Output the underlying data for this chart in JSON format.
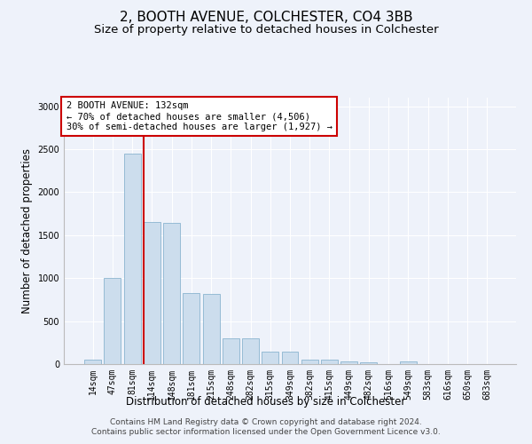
{
  "title": "2, BOOTH AVENUE, COLCHESTER, CO4 3BB",
  "subtitle": "Size of property relative to detached houses in Colchester",
  "xlabel": "Distribution of detached houses by size in Colchester",
  "ylabel": "Number of detached properties",
  "categories": [
    "14sqm",
    "47sqm",
    "81sqm",
    "114sqm",
    "148sqm",
    "181sqm",
    "215sqm",
    "248sqm",
    "282sqm",
    "315sqm",
    "349sqm",
    "382sqm",
    "415sqm",
    "449sqm",
    "482sqm",
    "516sqm",
    "549sqm",
    "583sqm",
    "616sqm",
    "650sqm",
    "683sqm"
  ],
  "values": [
    55,
    1000,
    2450,
    1650,
    1640,
    830,
    820,
    300,
    295,
    145,
    145,
    55,
    50,
    30,
    25,
    0,
    30,
    0,
    0,
    0,
    0
  ],
  "bar_color": "#ccdded",
  "bar_edge_color": "#7aaac8",
  "vline_color": "#cc0000",
  "annotation_text": "2 BOOTH AVENUE: 132sqm\n← 70% of detached houses are smaller (4,506)\n30% of semi-detached houses are larger (1,927) →",
  "annotation_box_color": "#ffffff",
  "annotation_box_edge": "#cc0000",
  "ylim": [
    0,
    3100
  ],
  "footer1": "Contains HM Land Registry data © Crown copyright and database right 2024.",
  "footer2": "Contains public sector information licensed under the Open Government Licence v3.0.",
  "bg_color": "#eef2fa",
  "grid_color": "#ffffff",
  "title_fontsize": 11,
  "subtitle_fontsize": 9.5,
  "axis_label_fontsize": 8.5,
  "tick_fontsize": 7,
  "footer_fontsize": 6.5,
  "annotation_fontsize": 7.5
}
